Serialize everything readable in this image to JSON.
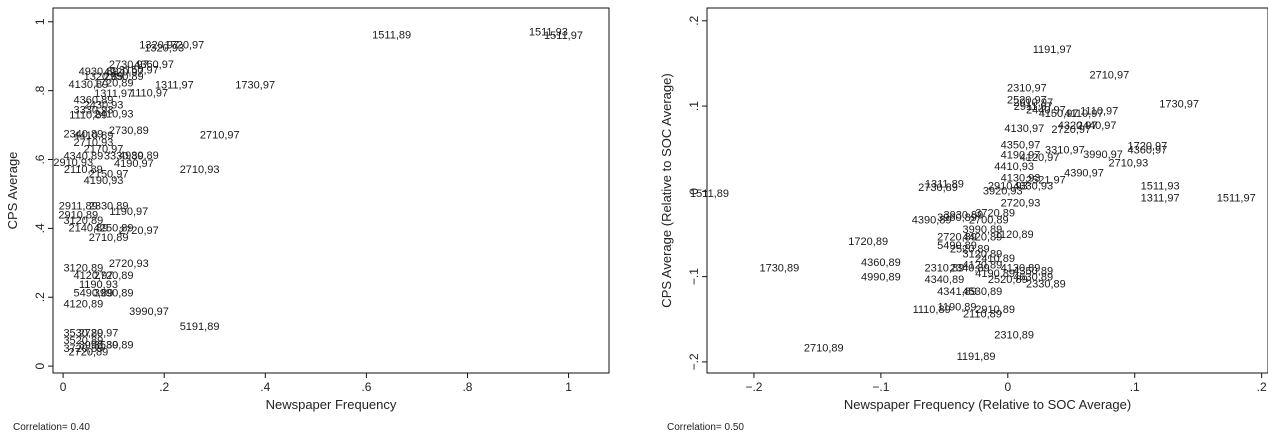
{
  "chart_data": [
    {
      "type": "scatter",
      "xlabel": "Newspaper Frequency",
      "ylabel": "CPS Average",
      "note": "Correlation= 0.40",
      "xlim": [
        -0.02,
        1.08
      ],
      "ylim": [
        -0.02,
        1.04
      ],
      "xticks": [
        {
          "v": 0,
          "label": "0"
        },
        {
          "v": 0.2,
          "label": ".2"
        },
        {
          "v": 0.4,
          "label": ".4"
        },
        {
          "v": 0.6,
          "label": ".6"
        },
        {
          "v": 0.8,
          "label": ".8"
        },
        {
          "v": 1,
          "label": "1"
        }
      ],
      "yticks": [
        {
          "v": 0,
          "label": "0"
        },
        {
          "v": 0.2,
          "label": ".2"
        },
        {
          "v": 0.4,
          "label": ".4"
        },
        {
          "v": 0.6,
          "label": ".6"
        },
        {
          "v": 0.8,
          "label": ".8"
        },
        {
          "v": 1,
          "label": "1"
        }
      ],
      "points": [
        {
          "x": 0.65,
          "y": 0.963,
          "label": "1511,89"
        },
        {
          "x": 0.96,
          "y": 0.972,
          "label": "1511,93"
        },
        {
          "x": 0.99,
          "y": 0.962,
          "label": "1511,97"
        },
        {
          "x": 0.19,
          "y": 0.934,
          "label": "1320,97"
        },
        {
          "x": 0.2,
          "y": 0.926,
          "label": "1320,93"
        },
        {
          "x": 0.24,
          "y": 0.934,
          "label": "1720,97"
        },
        {
          "x": 0.13,
          "y": 0.878,
          "label": "2730,97"
        },
        {
          "x": 0.18,
          "y": 0.877,
          "label": "4360,97"
        },
        {
          "x": 0.15,
          "y": 0.862,
          "label": "3150,97"
        },
        {
          "x": 0.07,
          "y": 0.857,
          "label": "4930,89"
        },
        {
          "x": 0.12,
          "y": 0.855,
          "label": "4920,97"
        },
        {
          "x": 0.08,
          "y": 0.843,
          "label": "1320,89"
        },
        {
          "x": 0.12,
          "y": 0.842,
          "label": "2950,89"
        },
        {
          "x": 0.05,
          "y": 0.82,
          "label": "4130,89"
        },
        {
          "x": 0.1,
          "y": 0.823,
          "label": "1720,89"
        },
        {
          "x": 0.22,
          "y": 0.818,
          "label": "1311,97"
        },
        {
          "x": 0.38,
          "y": 0.818,
          "label": "1730,97"
        },
        {
          "x": 0.1,
          "y": 0.793,
          "label": "1311,97"
        },
        {
          "x": 0.17,
          "y": 0.795,
          "label": "1110,97"
        },
        {
          "x": 0.06,
          "y": 0.775,
          "label": "4360,89"
        },
        {
          "x": 0.08,
          "y": 0.76,
          "label": "2430,93"
        },
        {
          "x": 0.06,
          "y": 0.745,
          "label": "3330,93"
        },
        {
          "x": 0.05,
          "y": 0.731,
          "label": "1110,89"
        },
        {
          "x": 0.1,
          "y": 0.733,
          "label": "2410,93"
        },
        {
          "x": 0.13,
          "y": 0.686,
          "label": "2730,89"
        },
        {
          "x": 0.04,
          "y": 0.676,
          "label": "2340,89"
        },
        {
          "x": 0.06,
          "y": 0.671,
          "label": "4410,89"
        },
        {
          "x": 0.31,
          "y": 0.672,
          "label": "2710,97"
        },
        {
          "x": 0.06,
          "y": 0.651,
          "label": "2710,93"
        },
        {
          "x": 0.08,
          "y": 0.632,
          "label": "2170,97"
        },
        {
          "x": 0.04,
          "y": 0.611,
          "label": "4340,89"
        },
        {
          "x": 0.12,
          "y": 0.611,
          "label": "3330,89"
        },
        {
          "x": 0.15,
          "y": 0.613,
          "label": "4930,89"
        },
        {
          "x": 0.02,
          "y": 0.593,
          "label": "2910,93"
        },
        {
          "x": 0.14,
          "y": 0.59,
          "label": "4190,97"
        },
        {
          "x": 0.04,
          "y": 0.572,
          "label": "2110,89"
        },
        {
          "x": 0.27,
          "y": 0.572,
          "label": "2710,93"
        },
        {
          "x": 0.09,
          "y": 0.559,
          "label": "2150,97"
        },
        {
          "x": 0.08,
          "y": 0.541,
          "label": "4190,93"
        },
        {
          "x": 0.03,
          "y": 0.467,
          "label": "2911,89"
        },
        {
          "x": 0.09,
          "y": 0.467,
          "label": "2330,89"
        },
        {
          "x": 0.03,
          "y": 0.441,
          "label": "2910,89"
        },
        {
          "x": 0.13,
          "y": 0.451,
          "label": "1190,97"
        },
        {
          "x": 0.04,
          "y": 0.424,
          "label": "3120,89"
        },
        {
          "x": 0.05,
          "y": 0.402,
          "label": "2140,89"
        },
        {
          "x": 0.1,
          "y": 0.402,
          "label": "4250,89"
        },
        {
          "x": 0.15,
          "y": 0.396,
          "label": "2720,97"
        },
        {
          "x": 0.09,
          "y": 0.375,
          "label": "2710,89"
        },
        {
          "x": 0.13,
          "y": 0.3,
          "label": "2720,93"
        },
        {
          "x": 0.04,
          "y": 0.286,
          "label": "3120,89"
        },
        {
          "x": 0.06,
          "y": 0.264,
          "label": "4120,97"
        },
        {
          "x": 0.1,
          "y": 0.264,
          "label": "2720,89"
        },
        {
          "x": 0.07,
          "y": 0.239,
          "label": "1190,93"
        },
        {
          "x": 0.06,
          "y": 0.214,
          "label": "5490,89"
        },
        {
          "x": 0.1,
          "y": 0.214,
          "label": "3990,89"
        },
        {
          "x": 0.04,
          "y": 0.182,
          "label": "4120,89"
        },
        {
          "x": 0.17,
          "y": 0.16,
          "label": "3990,97"
        },
        {
          "x": 0.27,
          "y": 0.117,
          "label": "5191,89"
        },
        {
          "x": 0.04,
          "y": 0.097,
          "label": "3530,89"
        },
        {
          "x": 0.07,
          "y": 0.097,
          "label": "2720,97"
        },
        {
          "x": 0.04,
          "y": 0.076,
          "label": "3520,89"
        },
        {
          "x": 0.07,
          "y": 0.063,
          "label": "3990,89"
        },
        {
          "x": 0.1,
          "y": 0.063,
          "label": "3530,89"
        },
        {
          "x": 0.04,
          "y": 0.053,
          "label": "3720,89"
        },
        {
          "x": 0.05,
          "y": 0.042,
          "label": "2720,89"
        }
      ]
    },
    {
      "type": "scatter",
      "xlabel": "Newspaper Frequency (Relative to SOC Average)",
      "ylabel": "CPS Average (Relative to SOC Average)",
      "note": "Correlation= 0.50",
      "xlim": [
        -0.237,
        0.205
      ],
      "ylim": [
        -0.213,
        0.215
      ],
      "xticks": [
        {
          "v": -0.2,
          "label": "−.2"
        },
        {
          "v": -0.1,
          "label": "−.1"
        },
        {
          "v": 0,
          "label": "0"
        },
        {
          "v": 0.1,
          "label": ".1"
        },
        {
          "v": 0.2,
          "label": ".2"
        }
      ],
      "yticks": [
        {
          "v": -0.2,
          "label": "−.2"
        },
        {
          "v": -0.1,
          "label": "−.1"
        },
        {
          "v": 0,
          "label": "0"
        },
        {
          "v": 0.1,
          "label": ".1"
        },
        {
          "v": 0.2,
          "label": ".2"
        }
      ],
      "points": [
        {
          "x": -0.235,
          "y": -0.002,
          "label": "1511,89"
        },
        {
          "x": 0.035,
          "y": 0.167,
          "label": "1191,97"
        },
        {
          "x": 0.08,
          "y": 0.137,
          "label": "2710,97"
        },
        {
          "x": 0.015,
          "y": 0.122,
          "label": "2310,97"
        },
        {
          "x": 0.015,
          "y": 0.108,
          "label": "2520,97"
        },
        {
          "x": 0.02,
          "y": 0.105,
          "label": "2910,97"
        },
        {
          "x": 0.02,
          "y": 0.1,
          "label": "2911,97"
        },
        {
          "x": 0.03,
          "y": 0.096,
          "label": "2440,97"
        },
        {
          "x": 0.072,
          "y": 0.095,
          "label": "1110,97"
        },
        {
          "x": 0.135,
          "y": 0.103,
          "label": "1730,97"
        },
        {
          "x": 0.04,
          "y": 0.092,
          "label": "4150,97"
        },
        {
          "x": 0.06,
          "y": 0.092,
          "label": "4110,97"
        },
        {
          "x": 0.055,
          "y": 0.078,
          "label": "4320,97"
        },
        {
          "x": 0.07,
          "y": 0.078,
          "label": "2440,97"
        },
        {
          "x": 0.013,
          "y": 0.074,
          "label": "4130,97"
        },
        {
          "x": 0.05,
          "y": 0.073,
          "label": "2720,97"
        },
        {
          "x": 0.01,
          "y": 0.055,
          "label": "4350,97"
        },
        {
          "x": 0.045,
          "y": 0.049,
          "label": "3310,97"
        },
        {
          "x": 0.11,
          "y": 0.054,
          "label": "1720,97"
        },
        {
          "x": 0.11,
          "y": 0.049,
          "label": "4360,97"
        },
        {
          "x": 0.075,
          "y": 0.044,
          "label": "3990,97"
        },
        {
          "x": 0.095,
          "y": 0.034,
          "label": "2710,93"
        },
        {
          "x": 0.01,
          "y": 0.043,
          "label": "4190,97"
        },
        {
          "x": 0.025,
          "y": 0.04,
          "label": "4120,97"
        },
        {
          "x": 0.005,
          "y": 0.03,
          "label": "4410,93"
        },
        {
          "x": 0.06,
          "y": 0.022,
          "label": "4390,97"
        },
        {
          "x": 0.01,
          "y": 0.016,
          "label": "4130,93"
        },
        {
          "x": 0.03,
          "y": 0.014,
          "label": "2521,97"
        },
        {
          "x": -0.05,
          "y": 0.009,
          "label": "1311,89"
        },
        {
          "x": -0.055,
          "y": 0.005,
          "label": "2730,89"
        },
        {
          "x": 0.0,
          "y": 0.007,
          "label": "2910,93"
        },
        {
          "x": 0.02,
          "y": 0.007,
          "label": "4330,93"
        },
        {
          "x": 0.12,
          "y": 0.007,
          "label": "1511,93"
        },
        {
          "x": -0.004,
          "y": 0.001,
          "label": "3920,93"
        },
        {
          "x": 0.12,
          "y": -0.007,
          "label": "1311,97"
        },
        {
          "x": 0.18,
          "y": -0.007,
          "label": "1511,97"
        },
        {
          "x": 0.01,
          "y": -0.013,
          "label": "2720,93"
        },
        {
          "x": -0.035,
          "y": -0.027,
          "label": "3930,89"
        },
        {
          "x": -0.01,
          "y": -0.025,
          "label": "3720,89"
        },
        {
          "x": -0.06,
          "y": -0.033,
          "label": "4390,89"
        },
        {
          "x": -0.04,
          "y": -0.03,
          "label": "3960,89"
        },
        {
          "x": -0.015,
          "y": -0.033,
          "label": "2700,89"
        },
        {
          "x": -0.02,
          "y": -0.044,
          "label": "3990,89"
        },
        {
          "x": -0.04,
          "y": -0.053,
          "label": "2720,89"
        },
        {
          "x": -0.02,
          "y": -0.053,
          "label": "4420,89"
        },
        {
          "x": 0.005,
          "y": -0.05,
          "label": "1120,89"
        },
        {
          "x": -0.11,
          "y": -0.058,
          "label": "1720,89"
        },
        {
          "x": -0.04,
          "y": -0.063,
          "label": "5490,89"
        },
        {
          "x": -0.03,
          "y": -0.067,
          "label": "2520,89"
        },
        {
          "x": -0.02,
          "y": -0.073,
          "label": "3120,89"
        },
        {
          "x": -0.01,
          "y": -0.078,
          "label": "2410,89"
        },
        {
          "x": -0.1,
          "y": -0.083,
          "label": "4360,89"
        },
        {
          "x": -0.05,
          "y": -0.089,
          "label": "2310,89"
        },
        {
          "x": -0.03,
          "y": -0.089,
          "label": "2340,89"
        },
        {
          "x": -0.02,
          "y": -0.086,
          "label": "4120,89"
        },
        {
          "x": 0.01,
          "y": -0.089,
          "label": "4130,89"
        },
        {
          "x": -0.18,
          "y": -0.089,
          "label": "1730,89"
        },
        {
          "x": 0.02,
          "y": -0.093,
          "label": "4350,89"
        },
        {
          "x": -0.01,
          "y": -0.096,
          "label": "4190,89"
        },
        {
          "x": 0.02,
          "y": -0.1,
          "label": "4630,89"
        },
        {
          "x": -0.1,
          "y": -0.1,
          "label": "4990,89"
        },
        {
          "x": -0.05,
          "y": -0.103,
          "label": "4340,89"
        },
        {
          "x": 0.0,
          "y": -0.103,
          "label": "2520,89"
        },
        {
          "x": 0.03,
          "y": -0.108,
          "label": "2330,89"
        },
        {
          "x": -0.04,
          "y": -0.117,
          "label": "4341,89"
        },
        {
          "x": -0.02,
          "y": -0.117,
          "label": "4530,89"
        },
        {
          "x": -0.04,
          "y": -0.135,
          "label": "1190,89"
        },
        {
          "x": -0.06,
          "y": -0.138,
          "label": "1110,89"
        },
        {
          "x": -0.01,
          "y": -0.138,
          "label": "2910,89"
        },
        {
          "x": -0.02,
          "y": -0.143,
          "label": "2110,89"
        },
        {
          "x": 0.005,
          "y": -0.168,
          "label": "2310,89"
        },
        {
          "x": -0.145,
          "y": -0.183,
          "label": "2710,89"
        },
        {
          "x": -0.025,
          "y": -0.193,
          "label": "1191,89"
        }
      ]
    }
  ]
}
